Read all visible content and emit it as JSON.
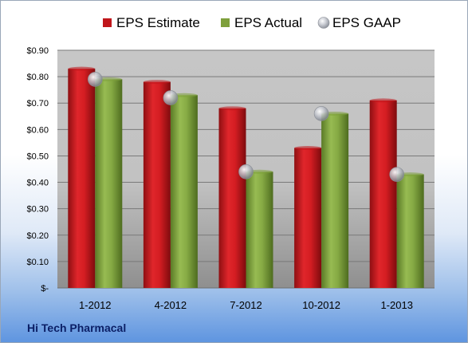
{
  "chart_data": {
    "type": "bar",
    "title": "",
    "xlabel": "",
    "ylabel": "",
    "categories": [
      "1-2012",
      "4-2012",
      "7-2012",
      "10-2012",
      "1-2013"
    ],
    "series": [
      {
        "name": "EPS Estimate",
        "kind": "bar",
        "color": "#c0161b",
        "values": [
          0.83,
          0.78,
          0.68,
          0.53,
          0.71
        ]
      },
      {
        "name": "EPS Actual",
        "kind": "bar",
        "color": "#7ea03c",
        "values": [
          0.79,
          0.73,
          0.44,
          0.66,
          0.43
        ]
      },
      {
        "name": "EPS GAAP",
        "kind": "marker",
        "color": "#b9bcc4",
        "values": [
          0.79,
          0.72,
          0.44,
          0.66,
          0.43
        ]
      }
    ],
    "ylim": [
      0,
      0.9
    ],
    "yticks": [
      0,
      0.1,
      0.2,
      0.3,
      0.4,
      0.5,
      0.6,
      0.7,
      0.8,
      0.9
    ],
    "ytick_labels": [
      "$-",
      "$0.10",
      "$0.20",
      "$0.30",
      "$0.40",
      "$0.50",
      "$0.60",
      "$0.70",
      "$0.80",
      "$0.90"
    ],
    "grid": true,
    "legend_position": "top"
  },
  "footer": {
    "company": "Hi Tech Pharmacal"
  }
}
